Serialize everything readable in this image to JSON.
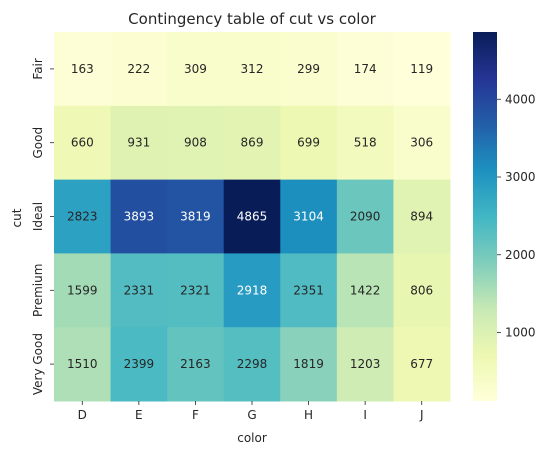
{
  "chart_data": {
    "type": "heatmap",
    "title": "Contingency table of cut vs color",
    "xlabel": "color",
    "ylabel": "cut",
    "x_categories": [
      "D",
      "E",
      "F",
      "G",
      "H",
      "I",
      "J"
    ],
    "y_categories": [
      "Fair",
      "Good",
      "Ideal",
      "Premium",
      "Very Good"
    ],
    "values": [
      [
        163,
        222,
        309,
        312,
        299,
        174,
        119
      ],
      [
        660,
        931,
        908,
        869,
        699,
        518,
        306
      ],
      [
        2823,
        3893,
        3819,
        4865,
        3104,
        2090,
        894
      ],
      [
        1599,
        2331,
        2321,
        2918,
        2351,
        1422,
        806
      ],
      [
        1510,
        2399,
        2163,
        2298,
        1819,
        1203,
        677
      ]
    ],
    "colormap": "YlGnBu",
    "vmin": 119,
    "vmax": 4865,
    "colorbar_ticks": [
      1000,
      2000,
      3000,
      4000
    ],
    "annotations": true,
    "grid": false
  }
}
